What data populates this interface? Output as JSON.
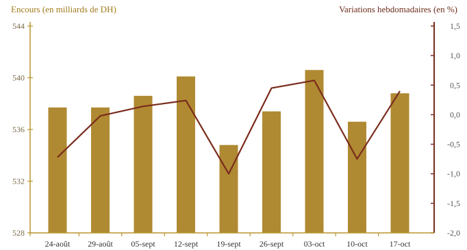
{
  "chart_data": {
    "type": "bar",
    "categories": [
      "24-août",
      "29-août",
      "05-sept",
      "12-sept",
      "19-sept",
      "26-sept",
      "03-oct",
      "10-oct",
      "17-oct"
    ],
    "left_axis_title": "Encours (en milliards de DH)",
    "right_axis_title": "Variations hebdomadaires (en %)",
    "left_axis": {
      "min": 528,
      "max": 544,
      "ticks": [
        "528",
        "532",
        "536",
        "540",
        "544"
      ],
      "tick_values": [
        528,
        532,
        536,
        540,
        544
      ]
    },
    "right_axis": {
      "min": -2.0,
      "max": 1.5,
      "ticks": [
        "-2,0",
        "-1,5",
        "-1,0",
        "-0,5",
        "0,0",
        "0,5",
        "1,0",
        "1,5"
      ],
      "tick_values": [
        -2.0,
        -1.5,
        -1.0,
        -0.5,
        0.0,
        0.5,
        1.0,
        1.5
      ]
    },
    "series": [
      {
        "type": "bar",
        "axis": "left",
        "values": [
          537.7,
          537.7,
          538.6,
          540.1,
          534.8,
          537.4,
          540.6,
          536.6,
          538.8
        ]
      },
      {
        "type": "line",
        "axis": "right",
        "values": [
          -0.72,
          -0.02,
          0.14,
          0.24,
          -1.0,
          0.45,
          0.58,
          -0.75,
          0.4
        ]
      }
    ],
    "colors": {
      "bar": "#b08a33",
      "line": "#7a2c1c",
      "left_axis": "#b8962e",
      "right_axis": "#7a2c1c"
    },
    "grid": false
  }
}
